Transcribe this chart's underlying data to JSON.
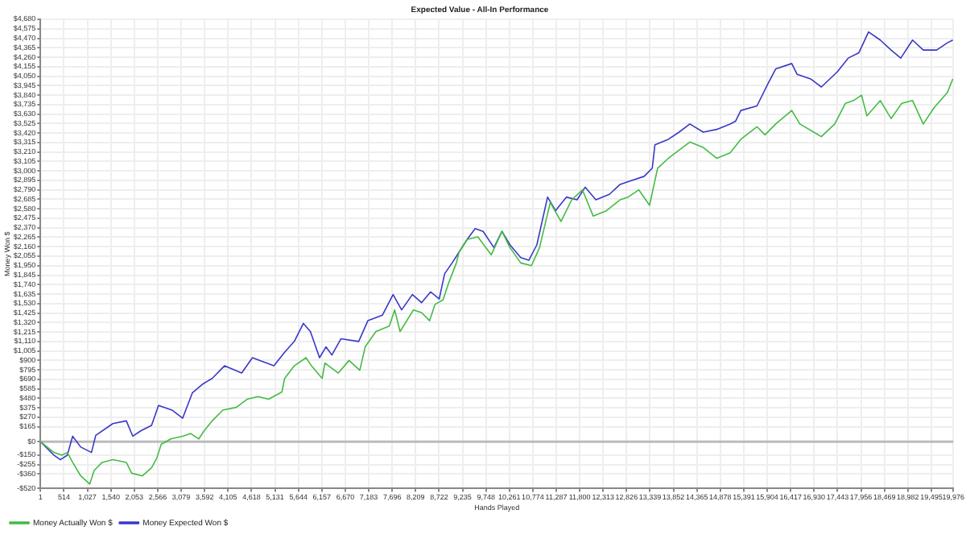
{
  "chart_data": {
    "type": "line",
    "title": "Expected Value - All-In Performance",
    "xlabel": "Hands Played",
    "ylabel": "Money Won $",
    "xlim": [
      1,
      19976
    ],
    "xticks": [
      1,
      514,
      {
        "value": 1027,
        "label": "1,027"
      },
      {
        "value": 1540,
        "label": "1,540"
      },
      {
        "value": 2053,
        "label": "2,053"
      },
      {
        "value": 2566,
        "label": "2,566"
      },
      {
        "value": 3079,
        "label": "3,079"
      },
      {
        "value": 3592,
        "label": "3,592"
      },
      {
        "value": 4105,
        "label": "4,105"
      },
      {
        "value": 4618,
        "label": "4,618"
      },
      {
        "value": 5131,
        "label": "5,131"
      },
      {
        "value": 5644,
        "label": "5,644"
      },
      {
        "value": 6157,
        "label": "6,157"
      },
      {
        "value": 6670,
        "label": "6,670"
      },
      {
        "value": 7183,
        "label": "7,183"
      },
      {
        "value": 7696,
        "label": "7,696"
      },
      {
        "value": 8209,
        "label": "8,209"
      },
      {
        "value": 8722,
        "label": "8,722"
      },
      {
        "value": 9235,
        "label": "9,235"
      },
      {
        "value": 9748,
        "label": "9,748"
      },
      {
        "value": 10261,
        "label": "10,261"
      },
      {
        "value": 10774,
        "label": "10,774"
      },
      {
        "value": 11287,
        "label": "11,287"
      },
      {
        "value": 11800,
        "label": "11,800"
      },
      {
        "value": 12313,
        "label": "12,313"
      },
      {
        "value": 12826,
        "label": "12,826"
      },
      {
        "value": 13339,
        "label": "13,339"
      },
      {
        "value": 13852,
        "label": "13,852"
      },
      {
        "value": 14365,
        "label": "14,365"
      },
      {
        "value": 14878,
        "label": "14,878"
      },
      {
        "value": 15391,
        "label": "15,391"
      },
      {
        "value": 15904,
        "label": "15,904"
      },
      {
        "value": 16417,
        "label": "16,417"
      },
      {
        "value": 16930,
        "label": "16,930"
      },
      {
        "value": 17443,
        "label": "17,443"
      },
      {
        "value": 17956,
        "label": "17,956"
      },
      {
        "value": 18469,
        "label": "18,469"
      },
      {
        "value": 18982,
        "label": "18,982"
      },
      {
        "value": 19495,
        "label": "19,495"
      },
      {
        "value": 19976,
        "label": "19,976"
      }
    ],
    "ylim": [
      -520,
      4680
    ],
    "yticks": [
      {
        "value": -520,
        "label": "-$520"
      },
      {
        "value": -360,
        "label": "-$360"
      },
      {
        "value": -255,
        "label": "-$255"
      },
      {
        "value": -150,
        "label": "-$150"
      },
      {
        "value": 0,
        "label": "$0"
      },
      {
        "value": 165,
        "label": "$165"
      },
      {
        "value": 270,
        "label": "$270"
      },
      {
        "value": 375,
        "label": "$375"
      },
      {
        "value": 480,
        "label": "$480"
      },
      {
        "value": 585,
        "label": "$585"
      },
      {
        "value": 690,
        "label": "$690"
      },
      {
        "value": 795,
        "label": "$795"
      },
      {
        "value": 900,
        "label": "$900"
      },
      {
        "value": 1005,
        "label": "$1,005"
      },
      {
        "value": 1110,
        "label": "$1,110"
      },
      {
        "value": 1215,
        "label": "$1,215"
      },
      {
        "value": 1320,
        "label": "$1,320"
      },
      {
        "value": 1425,
        "label": "$1,425"
      },
      {
        "value": 1530,
        "label": "$1,530"
      },
      {
        "value": 1635,
        "label": "$1,635"
      },
      {
        "value": 1740,
        "label": "$1,740"
      },
      {
        "value": 1845,
        "label": "$1,845"
      },
      {
        "value": 1950,
        "label": "$1,950"
      },
      {
        "value": 2055,
        "label": "$2,055"
      },
      {
        "value": 2160,
        "label": "$2,160"
      },
      {
        "value": 2265,
        "label": "$2,265"
      },
      {
        "value": 2370,
        "label": "$2,370"
      },
      {
        "value": 2475,
        "label": "$2,475"
      },
      {
        "value": 2580,
        "label": "$2,580"
      },
      {
        "value": 2685,
        "label": "$2,685"
      },
      {
        "value": 2790,
        "label": "$2,790"
      },
      {
        "value": 2895,
        "label": "$2,895"
      },
      {
        "value": 3000,
        "label": "$3,000"
      },
      {
        "value": 3105,
        "label": "$3,105"
      },
      {
        "value": 3210,
        "label": "$3,210"
      },
      {
        "value": 3315,
        "label": "$3,315"
      },
      {
        "value": 3420,
        "label": "$3,420"
      },
      {
        "value": 3525,
        "label": "$3,525"
      },
      {
        "value": 3630,
        "label": "$3,630"
      },
      {
        "value": 3735,
        "label": "$3,735"
      },
      {
        "value": 3840,
        "label": "$3,840"
      },
      {
        "value": 3945,
        "label": "$3,945"
      },
      {
        "value": 4050,
        "label": "$4,050"
      },
      {
        "value": 4155,
        "label": "$4,155"
      },
      {
        "value": 4260,
        "label": "$4,260"
      },
      {
        "value": 4365,
        "label": "$4,365"
      },
      {
        "value": 4470,
        "label": "$4,470"
      },
      {
        "value": 4575,
        "label": "$4,575"
      },
      {
        "value": 4680,
        "label": "$4,680"
      }
    ],
    "grid": true,
    "legend": "bottom left",
    "marker": "none",
    "line_style": "solid",
    "ref_lines": [
      {
        "axis": "y",
        "value": 0,
        "color": "#bbbbbb"
      }
    ],
    "series": [
      {
        "name": "Money Actually Won $",
        "color": "#44bb44",
        "x": [
          1,
          293,
          470,
          587,
          704,
          881,
          1080,
          1174,
          1350,
          1585,
          1879,
          1996,
          2231,
          2431,
          2548,
          2642,
          2853,
          3112,
          3288,
          3464,
          3581,
          3757,
          3992,
          4286,
          4521,
          4756,
          4991,
          5284,
          5343,
          5554,
          5812,
          5930,
          6165,
          6224,
          6518,
          6753,
          6988,
          7106,
          7340,
          7634,
          7751,
          7869,
          8163,
          8339,
          8515,
          8633,
          8809,
          8926,
          9102,
          9160,
          9336,
          9571,
          9864,
          10099,
          10275,
          10510,
          10745,
          10921,
          11156,
          11391,
          11626,
          11861,
          12095,
          12389,
          12683,
          12859,
          13094,
          13329,
          13505,
          13740,
          13975,
          14210,
          14504,
          14797,
          15091,
          15326,
          15679,
          15855,
          16089,
          16441,
          16617,
          17088,
          17381,
          17616,
          17792,
          17968,
          18086,
          18379,
          18614,
          18849,
          19084,
          19319,
          19554,
          19847,
          19964
        ],
        "values": [
          0,
          -120,
          -150,
          -120,
          -230,
          -380,
          -470,
          -320,
          -230,
          -200,
          -230,
          -350,
          -380,
          -290,
          -180,
          -30,
          30,
          60,
          90,
          30,
          120,
          230,
          350,
          380,
          470,
          500,
          470,
          550,
          700,
          840,
          930,
          840,
          700,
          870,
          760,
          900,
          790,
          1050,
          1220,
          1280,
          1460,
          1220,
          1460,
          1430,
          1340,
          1520,
          1570,
          1750,
          1980,
          2100,
          2240,
          2270,
          2070,
          2330,
          2150,
          1980,
          1950,
          2150,
          2650,
          2440,
          2680,
          2790,
          2500,
          2560,
          2680,
          2710,
          2790,
          2620,
          3030,
          3140,
          3230,
          3320,
          3260,
          3140,
          3200,
          3350,
          3490,
          3400,
          3520,
          3670,
          3520,
          3380,
          3520,
          3750,
          3780,
          3840,
          3610,
          3780,
          3580,
          3750,
          3780,
          3520,
          3700,
          3870,
          4020
        ]
      },
      {
        "name": "Money Expected Won $",
        "color": "#3838c8",
        "x": [
          1,
          293,
          434,
          587,
          704,
          881,
          1116,
          1210,
          1585,
          1879,
          2020,
          2196,
          2431,
          2583,
          2877,
          3112,
          3323,
          3558,
          3757,
          4027,
          4403,
          4638,
          5108,
          5343,
          5554,
          5754,
          5907,
          6107,
          6248,
          6377,
          6577,
          6964,
          7164,
          7481,
          7716,
          7904,
          8139,
          8339,
          8538,
          8726,
          8844,
          9008,
          9160,
          9336,
          9512,
          9688,
          9923,
          10099,
          10275,
          10510,
          10686,
          10862,
          11097,
          11273,
          11508,
          11743,
          11919,
          12154,
          12448,
          12683,
          12859,
          13211,
          13388,
          13446,
          13740,
          13975,
          14210,
          14504,
          14797,
          15091,
          15209,
          15326,
          15679,
          15913,
          16089,
          16441,
          16559,
          16853,
          17088,
          17440,
          17675,
          17910,
          18121,
          18379,
          18614,
          18826,
          19084,
          19319,
          19612,
          19847,
          19964
        ],
        "values": [
          0,
          -150,
          -200,
          -150,
          60,
          -60,
          -120,
          70,
          200,
          230,
          60,
          120,
          180,
          400,
          350,
          260,
          540,
          640,
          700,
          840,
          760,
          930,
          840,
          990,
          1110,
          1310,
          1220,
          930,
          1050,
          960,
          1140,
          1110,
          1340,
          1400,
          1630,
          1460,
          1630,
          1540,
          1660,
          1580,
          1860,
          1980,
          2100,
          2240,
          2360,
          2330,
          2150,
          2330,
          2180,
          2040,
          2010,
          2180,
          2710,
          2560,
          2710,
          2680,
          2820,
          2680,
          2740,
          2850,
          2880,
          2940,
          3030,
          3290,
          3350,
          3430,
          3520,
          3430,
          3460,
          3520,
          3550,
          3670,
          3720,
          3960,
          4130,
          4190,
          4070,
          4020,
          3930,
          4100,
          4250,
          4310,
          4540,
          4450,
          4340,
          4250,
          4450,
          4340,
          4340,
          4420,
          4450
        ]
      }
    ]
  }
}
